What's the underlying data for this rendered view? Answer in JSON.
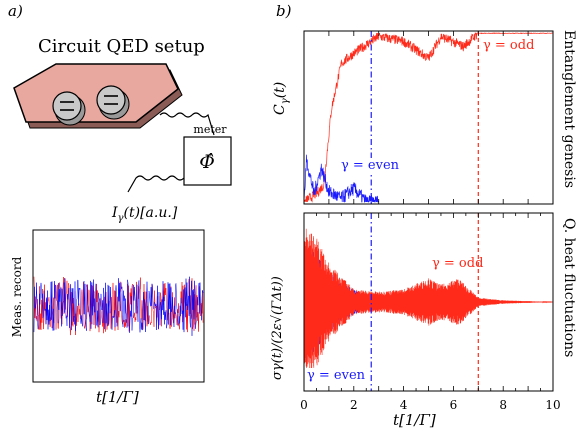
{
  "panel_a": {
    "label": "a)",
    "title": "Circuit QED setup",
    "meter_label": "meter",
    "meter_symbol": "Φ̂",
    "current_label": "I",
    "current_sub": "γ",
    "current_rest": "(t)[a.u.]",
    "record_ylabel": "Meas. record",
    "record_xlabel": "t[1/Γ]",
    "colors": {
      "chip": "#e8a8a0",
      "record_blue": "#0000ff",
      "record_red": "#ff0000"
    }
  },
  "panel_b": {
    "label": "b)",
    "top_ylabel_main": "C",
    "top_ylabel_sub": "γ",
    "top_ylabel_rest": "(t)",
    "top_side_label": "Entanglement genesis",
    "bottom_ylabel": "σγ(t)/(2ε√(ΓΔt))",
    "bottom_side_label": "Q. heat fluctuations",
    "label_odd": "γ = odd",
    "label_even": "γ = even",
    "xlabel": "t[1/Γ]",
    "colors": {
      "odd": "#ff2a1a",
      "even": "#1a1aff"
    }
  },
  "chart_data": [
    {
      "type": "line",
      "panel": "top",
      "xlim": [
        0,
        10
      ],
      "ylim": [
        0,
        1
      ],
      "vlines": [
        {
          "x": 2.7,
          "style": "dashdot",
          "series": "γ = even"
        },
        {
          "x": 7.0,
          "style": "dashed",
          "series": "γ = odd"
        }
      ],
      "series": [
        {
          "name": "γ = odd",
          "x": [
            0,
            0.5,
            0.8,
            1.1,
            1.5,
            2,
            2.5,
            3,
            4,
            5,
            5.5,
            6.4,
            7,
            8,
            10
          ],
          "y": [
            0,
            0.05,
            0.1,
            0.55,
            0.82,
            0.88,
            0.93,
            0.98,
            0.95,
            0.85,
            0.98,
            0.92,
            1.0,
            1.0,
            1.0
          ]
        },
        {
          "name": "γ = even",
          "x": [
            0,
            0.1,
            0.4,
            0.7,
            1.0,
            1.5,
            2.0,
            2.5,
            3
          ],
          "y": [
            0,
            0.25,
            0.05,
            0.2,
            0.06,
            0.02,
            0.08,
            0.0,
            0.0
          ]
        }
      ]
    },
    {
      "type": "line",
      "panel": "bottom",
      "xlim": [
        0,
        10
      ],
      "ylim": [
        -1,
        1
      ],
      "xticks": [
        0,
        2,
        4,
        6,
        8,
        10
      ],
      "vlines": [
        {
          "x": 2.7,
          "style": "dashdot",
          "series": "γ = even"
        },
        {
          "x": 7.0,
          "style": "dashed",
          "series": "γ = odd"
        }
      ],
      "series": [
        {
          "name": "γ = odd",
          "x": [
            0,
            0.5,
            1.0,
            1.5,
            2.0,
            3.0,
            4.0,
            5.0,
            5.5,
            6.2,
            7.0,
            8.0,
            10
          ],
          "y": [
            0.9,
            0.75,
            0.45,
            0.3,
            0.15,
            0.12,
            0.15,
            0.28,
            0.2,
            0.28,
            0.05,
            0.02,
            0.0
          ]
        },
        {
          "name": "γ = even",
          "x": [
            0,
            0.5,
            1.0,
            1.5,
            2.0,
            2.5,
            3.0
          ],
          "y": [
            0.75,
            0.55,
            0.35,
            0.22,
            0.15,
            0.05,
            0.0
          ]
        }
      ]
    }
  ]
}
